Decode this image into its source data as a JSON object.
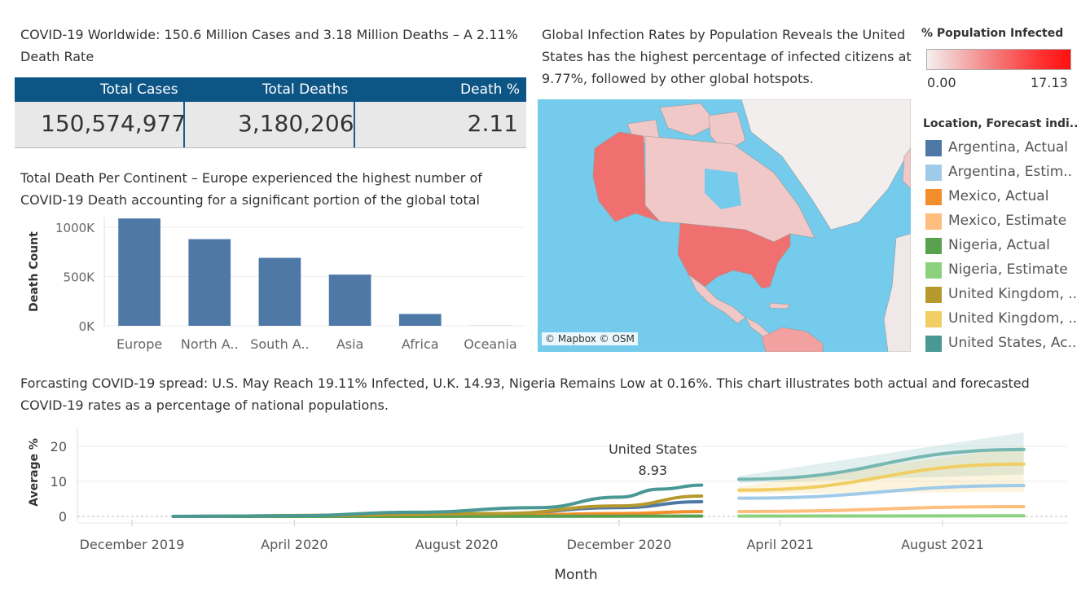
{
  "kpi": {
    "title": "COVID-19 Worldwide: 150.6 Million Cases and 3.18 Million Deaths  – A 2.11% Death Rate",
    "headers": [
      "Total Cases",
      "Total Deaths",
      "Death %"
    ],
    "values": [
      "150,574,977",
      "3,180,206",
      "2.11"
    ]
  },
  "map": {
    "title": "Global Infection Rates by Population Reveals the United States has the highest percentage of infected citizens at 9.77%, followed by other global hotspots.",
    "credit": "© Mapbox © OSM",
    "legend_title": "% Population Infected",
    "legend_min": "0.00",
    "legend_max": "17.13",
    "colors": {
      "low": "#f3f0ef",
      "high": "#ff1010",
      "usa": "#f07070",
      "ocean": "#74cbeb"
    }
  },
  "line_legend": {
    "title": "Location, Forecast indi..",
    "items": [
      {
        "label": "Argentina, Actual",
        "color": "#4e79a7"
      },
      {
        "label": "Argentina, Estim..",
        "color": "#a0cbe8"
      },
      {
        "label": "Mexico, Actual",
        "color": "#f28e2b"
      },
      {
        "label": "Mexico, Estimate",
        "color": "#ffbe7d"
      },
      {
        "label": "Nigeria, Actual",
        "color": "#59a14f"
      },
      {
        "label": "Nigeria, Estimate",
        "color": "#8cd17d"
      },
      {
        "label": "United Kingdom, ..",
        "color": "#b6992d"
      },
      {
        "label": "United Kingdom, ..",
        "color": "#f1ce63"
      },
      {
        "label": "United States, Ac..",
        "color": "#499894"
      }
    ]
  },
  "chart_data": [
    {
      "type": "bar",
      "title": "Total Death Per Continent  – Europe experienced the highest number of COVID-19 Death accounting for a significant portion of the global total",
      "categories": [
        "Europe",
        "North A..",
        "South A..",
        "Asia",
        "Africa",
        "Oceania"
      ],
      "values": [
        1090000,
        880000,
        690000,
        520000,
        120000,
        1000
      ],
      "ylabel": "Death Count",
      "ylim": [
        0,
        1100000
      ],
      "yticks": [
        0,
        500000,
        1000000
      ],
      "ytick_labels": [
        "0K",
        "500K",
        "1000K"
      ],
      "color": "#4e79a7",
      "grid": true
    },
    {
      "type": "line",
      "title": "Forcasting COVID-19 spread: U.S. May Reach 19.11% Infected, U.K. 14.93, Nigeria Remains Low at 0.16%. This chart illustrates both actual and forecasted COVID-19 rates as a percentage of national populations.",
      "xlabel": "Month",
      "ylabel": "Average %",
      "ylim": [
        -1,
        24
      ],
      "yticks": [
        0,
        10,
        20
      ],
      "xtick_labels": [
        "December 2019",
        "April 2020",
        "August 2020",
        "December 2020",
        "April 2021",
        "August 2021"
      ],
      "xtick_dates": [
        "2019-12-01",
        "2020-04-01",
        "2020-08-01",
        "2020-12-01",
        "2021-04-01",
        "2021-08-01"
      ],
      "annotation": {
        "label": "United States",
        "value": "8.93",
        "date": "2021-02-01",
        "y": 8.93
      },
      "series": [
        {
          "name": "Argentina, Actual",
          "color": "#4e79a7",
          "points": [
            [
              "2020-01-01",
              0
            ],
            [
              "2020-05-01",
              0.1
            ],
            [
              "2020-09-01",
              0.8
            ],
            [
              "2020-12-01",
              2.5
            ],
            [
              "2021-02-01",
              4.2
            ]
          ]
        },
        {
          "name": "Mexico, Actual",
          "color": "#f28e2b",
          "points": [
            [
              "2020-01-01",
              0
            ],
            [
              "2020-05-01",
              0
            ],
            [
              "2020-09-01",
              0.3
            ],
            [
              "2020-12-01",
              0.8
            ],
            [
              "2021-02-01",
              1.4
            ]
          ]
        },
        {
          "name": "Nigeria, Actual",
          "color": "#59a14f",
          "points": [
            [
              "2020-01-01",
              0
            ],
            [
              "2020-06-01",
              0
            ],
            [
              "2020-12-01",
              0.05
            ],
            [
              "2021-02-01",
              0.1
            ]
          ]
        },
        {
          "name": "United Kingdom, ..",
          "color": "#b6992d",
          "points": [
            [
              "2020-01-01",
              0
            ],
            [
              "2020-05-01",
              0.3
            ],
            [
              "2020-09-01",
              0.8
            ],
            [
              "2020-12-01",
              3.0
            ],
            [
              "2021-02-01",
              5.8
            ]
          ]
        },
        {
          "name": "United States, Ac..",
          "color": "#499894",
          "points": [
            [
              "2020-01-01",
              0
            ],
            [
              "2020-04-01",
              0.2
            ],
            [
              "2020-07-01",
              1.2
            ],
            [
              "2020-10-01",
              2.5
            ],
            [
              "2020-12-01",
              5.5
            ],
            [
              "2021-01-01",
              7.8
            ],
            [
              "2021-02-01",
              8.93
            ]
          ]
        },
        {
          "name": "Argentina, Estim..",
          "color": "#a0cbe8",
          "points": [
            [
              "2021-03-01",
              5.2
            ],
            [
              "2021-10-01",
              8.8
            ]
          ]
        },
        {
          "name": "Mexico, Estimate",
          "color": "#ffbe7d",
          "points": [
            [
              "2021-03-01",
              1.4
            ],
            [
              "2021-10-01",
              2.8
            ]
          ]
        },
        {
          "name": "Nigeria, Estimate",
          "color": "#8cd17d",
          "points": [
            [
              "2021-03-01",
              0.1
            ],
            [
              "2021-10-01",
              0.16
            ]
          ]
        },
        {
          "name": "United Kingdom, ..",
          "color": "#f1ce63",
          "points": [
            [
              "2021-03-01",
              7.5
            ],
            [
              "2021-10-01",
              14.93
            ]
          ]
        },
        {
          "name": "United States, Ac..",
          "color": "#76b7b2",
          "points": [
            [
              "2021-03-01",
              10.6
            ],
            [
              "2021-10-01",
              19.11
            ]
          ]
        }
      ],
      "bands": [
        {
          "color": "#76b7b2",
          "lower": [
            [
              "2021-03-01",
              9.5
            ],
            [
              "2021-10-01",
              12
            ]
          ],
          "upper": [
            [
              "2021-03-01",
              11.5
            ],
            [
              "2021-10-01",
              24
            ]
          ]
        },
        {
          "color": "#f1ce63",
          "lower": [
            [
              "2021-03-01",
              6.5
            ],
            [
              "2021-10-01",
              7
            ]
          ],
          "upper": [
            [
              "2021-03-01",
              8.5
            ],
            [
              "2021-10-01",
              20
            ]
          ]
        }
      ]
    }
  ]
}
